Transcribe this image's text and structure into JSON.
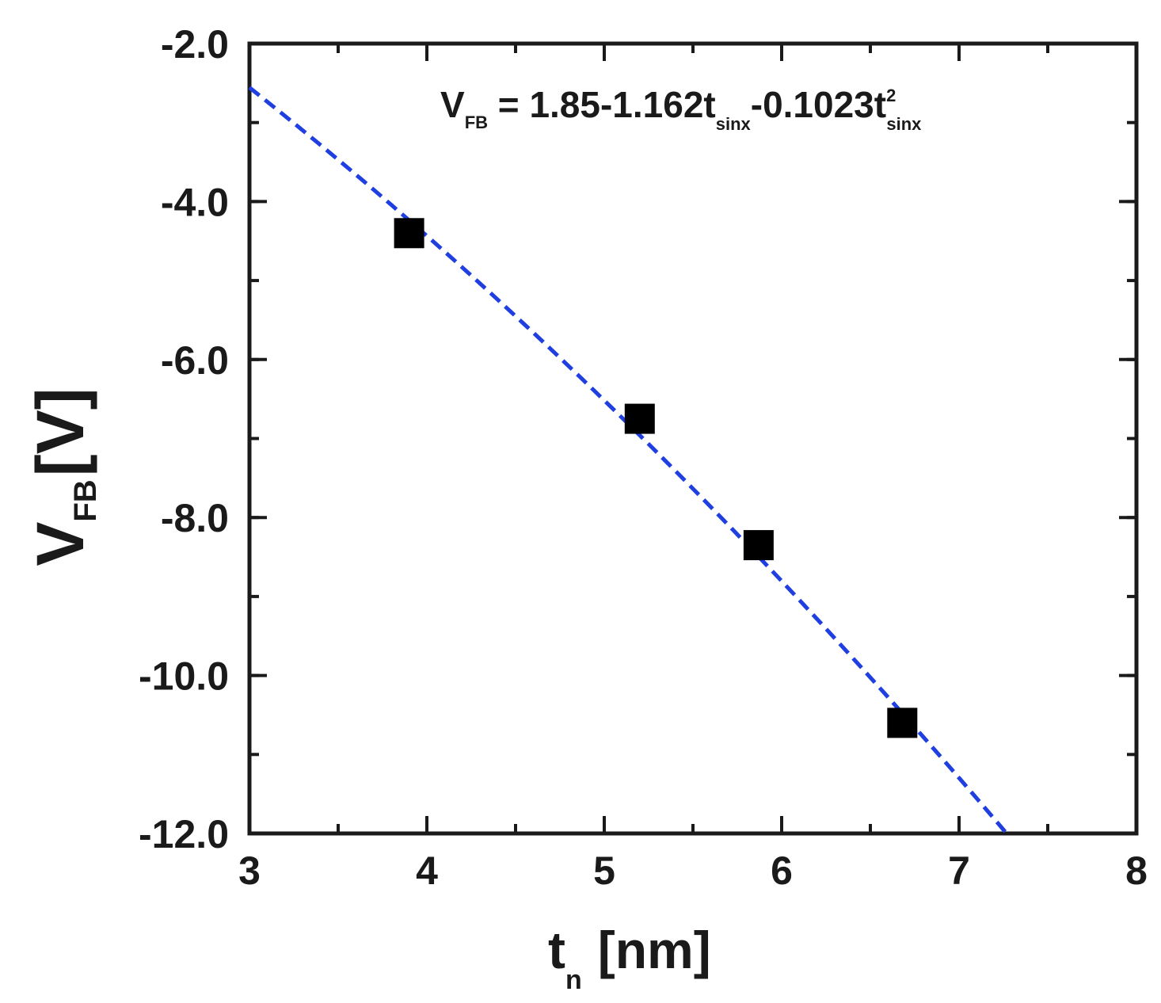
{
  "chart_data": {
    "type": "scatter",
    "title": "",
    "x_axis": {
      "label_main": "t",
      "label_sub": "n",
      "label_unit": "[nm]",
      "range": [
        3,
        8
      ],
      "ticks": [
        3,
        4,
        5,
        6,
        7,
        8
      ],
      "tick_labels": [
        "3",
        "4",
        "5",
        "6",
        "7",
        "8"
      ],
      "minor_step": 0.5
    },
    "y_axis": {
      "label_main": "V",
      "label_sub": "FB",
      "label_unit": "[V]",
      "range": [
        -12,
        -2
      ],
      "ticks": [
        -12,
        -10,
        -8,
        -6,
        -4,
        -2
      ],
      "tick_labels": [
        "-12.0",
        "-10.0",
        "-8.0",
        "-6.0",
        "-4.0",
        "-2.0"
      ],
      "minor_step": 1
    },
    "series": [
      {
        "marker": "square",
        "color": "#000000",
        "x": [
          3.9,
          5.2,
          5.87,
          6.68
        ],
        "y": [
          -4.4,
          -6.75,
          -8.35,
          -10.6
        ]
      }
    ],
    "fit": {
      "style": "dashed",
      "color": "#1f3fe0",
      "c0": 1.85,
      "c1": -1.162,
      "c2": -0.1023,
      "x_range": [
        3.0,
        7.27
      ]
    },
    "annotation": {
      "lhs_main": "V",
      "lhs_sub": "FB",
      "part1": " = 1.85-1.162t",
      "sub1": "sinx",
      "part2": "-0.1023t",
      "sup2": "2",
      "sub2": "sinx"
    },
    "grid": false,
    "legend": "none"
  }
}
